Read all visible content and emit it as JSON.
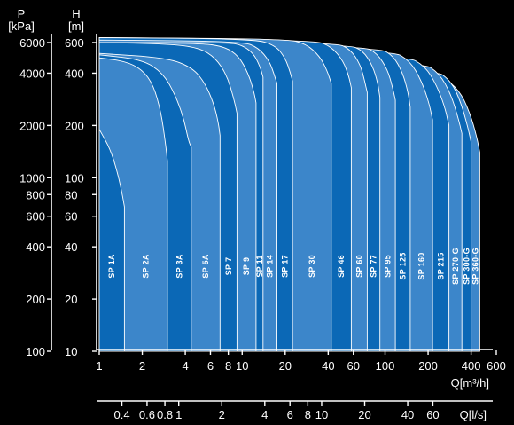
{
  "chart_data": {
    "type": "area",
    "title": "",
    "x_axis": {
      "label": "Q[m³/h]",
      "scale": "log",
      "range": [
        1,
        600
      ],
      "ticks": [
        1,
        2,
        4,
        6,
        8,
        10,
        20,
        40,
        60,
        100,
        200,
        400,
        600
      ],
      "tick_labels": [
        "1",
        "2",
        "4",
        "6",
        "8",
        "10",
        "20",
        "40",
        "60",
        "100",
        "200",
        "400",
        "600"
      ]
    },
    "x2_axis": {
      "label": "Q[l/s]",
      "scale": "log",
      "ticks": [
        0.4,
        0.6,
        0.8,
        1,
        2,
        4,
        6,
        8,
        10,
        20,
        40,
        60
      ],
      "tick_labels": [
        "0.4",
        "0.6",
        "0.8",
        "1",
        "2",
        "4",
        "6",
        "8",
        "10",
        "20",
        "40",
        "60"
      ]
    },
    "y_axis": {
      "label": "H\n[m]",
      "label_lines": [
        "H",
        "[m]"
      ],
      "scale": "log",
      "range": [
        10,
        600
      ],
      "ticks": [
        10,
        20,
        40,
        60,
        80,
        100,
        200,
        400,
        600
      ],
      "tick_labels": [
        "10",
        "20",
        "40",
        "60",
        "80",
        "100",
        "200",
        "400",
        "600"
      ]
    },
    "y2_axis": {
      "label": "P\n[kPa]",
      "label_lines": [
        "P",
        "[kPa]"
      ],
      "scale": "log",
      "ticks": [
        100,
        200,
        400,
        600,
        800,
        1000,
        2000,
        4000,
        6000
      ],
      "tick_labels": [
        "100",
        "200",
        "400",
        "600",
        "800",
        "1000",
        "2000",
        "4000",
        "6000"
      ]
    },
    "grid": false,
    "colors": {
      "dark": "#0b68b6",
      "light": "#3c86ca",
      "edge": "#ffffff",
      "background": "#000000"
    },
    "series": [
      {
        "name": "SP 1A",
        "q_min": 1.0,
        "q_max": 1.5,
        "h_max": 190,
        "shade": "dark",
        "points": [
          [
            1.0,
            190
          ],
          [
            1.2,
            145
          ],
          [
            1.35,
            105
          ],
          [
            1.45,
            80
          ],
          [
            1.5,
            68
          ]
        ]
      },
      {
        "name": "SP 2A",
        "q_min": 1.5,
        "q_max": 3.0,
        "h_max": 490,
        "shade": "light",
        "points": [
          [
            1.0,
            490
          ],
          [
            1.5,
            470
          ],
          [
            2.0,
            420
          ],
          [
            2.4,
            340
          ],
          [
            2.7,
            240
          ],
          [
            2.9,
            160
          ],
          [
            3.0,
            125
          ]
        ]
      },
      {
        "name": "SP 3A",
        "q_min": 3.0,
        "q_max": 4.4,
        "h_max": 510,
        "shade": "dark",
        "points": [
          [
            1.0,
            510
          ],
          [
            2.0,
            480
          ],
          [
            2.8,
            400
          ],
          [
            3.4,
            300
          ],
          [
            3.9,
            220
          ],
          [
            4.2,
            165
          ],
          [
            4.4,
            150
          ]
        ]
      },
      {
        "name": "SP 5A",
        "q_min": 4.4,
        "q_max": 7.0,
        "h_max": 520,
        "shade": "light",
        "points": [
          [
            1.0,
            520
          ],
          [
            3.0,
            490
          ],
          [
            4.5,
            430
          ],
          [
            5.5,
            350
          ],
          [
            6.3,
            270
          ],
          [
            6.8,
            210
          ],
          [
            7.0,
            175
          ]
        ]
      },
      {
        "name": "SP 7",
        "q_min": 7.0,
        "q_max": 9.2,
        "h_max": 600,
        "shade": "dark",
        "points": [
          [
            1.0,
            600
          ],
          [
            3.0,
            590
          ],
          [
            5.0,
            560
          ],
          [
            6.5,
            490
          ],
          [
            7.8,
            390
          ],
          [
            8.7,
            290
          ],
          [
            9.2,
            235
          ]
        ]
      },
      {
        "name": "SP 9",
        "q_min": 9.2,
        "q_max": 12.5,
        "h_max": 600,
        "shade": "light",
        "points": [
          [
            1.0,
            600
          ],
          [
            5.0,
            595
          ],
          [
            7.5,
            570
          ],
          [
            9.5,
            500
          ],
          [
            11.0,
            400
          ],
          [
            12.0,
            320
          ],
          [
            12.5,
            270
          ]
        ]
      },
      {
        "name": "SP 11",
        "q_min": 12.5,
        "q_max": 14.0,
        "h_max": 600,
        "shade": "dark",
        "points": [
          [
            1.0,
            600
          ],
          [
            8.0,
            600
          ],
          [
            10.0,
            580
          ],
          [
            12.0,
            520
          ],
          [
            13.3,
            440
          ],
          [
            14.0,
            380
          ]
        ]
      },
      {
        "name": "SP 14",
        "q_min": 14.0,
        "q_max": 17.5,
        "h_max": 620,
        "shade": "light",
        "points": [
          [
            1.0,
            620
          ],
          [
            10.0,
            610
          ],
          [
            13.0,
            560
          ],
          [
            15.5,
            470
          ],
          [
            16.8,
            390
          ],
          [
            17.5,
            350
          ]
        ]
      },
      {
        "name": "SP 17",
        "q_min": 17.5,
        "q_max": 22.5,
        "h_max": 640,
        "shade": "dark",
        "points": [
          [
            1.0,
            640
          ],
          [
            12.0,
            630
          ],
          [
            17.0,
            580
          ],
          [
            20.0,
            490
          ],
          [
            21.8,
            400
          ],
          [
            22.5,
            360
          ]
        ]
      },
      {
        "name": "SP 30",
        "q_min": 22.5,
        "q_max": 42.0,
        "h_max": 640,
        "shade": "light",
        "points": [
          [
            1.0,
            640
          ],
          [
            20.0,
            630
          ],
          [
            28.0,
            590
          ],
          [
            35.0,
            500
          ],
          [
            39.5,
            410
          ],
          [
            42.0,
            350
          ]
        ]
      },
      {
        "name": "SP 46",
        "q_min": 42.0,
        "q_max": 58.0,
        "h_max": 630,
        "shade": "dark",
        "points": [
          [
            1.0,
            630
          ],
          [
            32.0,
            620
          ],
          [
            42.0,
            570
          ],
          [
            51.0,
            470
          ],
          [
            56.0,
            380
          ],
          [
            58.0,
            330
          ]
        ]
      },
      {
        "name": "SP 60",
        "q_min": 58.0,
        "q_max": 75.0,
        "h_max": 620,
        "shade": "light",
        "points": [
          [
            1.0,
            620
          ],
          [
            45.0,
            600
          ],
          [
            57.0,
            550
          ],
          [
            67.0,
            450
          ],
          [
            72.0,
            360
          ],
          [
            75.0,
            310
          ]
        ]
      },
      {
        "name": "SP 77",
        "q_min": 75.0,
        "q_max": 92.0,
        "h_max": 600,
        "shade": "dark",
        "points": [
          [
            1.0,
            600
          ],
          [
            55.0,
            585
          ],
          [
            70.0,
            540
          ],
          [
            82.0,
            440
          ],
          [
            89.0,
            350
          ],
          [
            92.0,
            290
          ]
        ]
      },
      {
        "name": "SP 95",
        "q_min": 92.0,
        "q_max": 118.0,
        "h_max": 590,
        "shade": "light",
        "points": [
          [
            1.0,
            590
          ],
          [
            70.0,
            575
          ],
          [
            88.0,
            520
          ],
          [
            104.0,
            420
          ],
          [
            113.0,
            330
          ],
          [
            118.0,
            280
          ]
        ]
      },
      {
        "name": "SP 125",
        "q_min": 118.0,
        "q_max": 150.0,
        "h_max": 580,
        "shade": "dark",
        "points": [
          [
            1.0,
            580
          ],
          [
            90.0,
            565
          ],
          [
            115.0,
            500
          ],
          [
            133.0,
            400
          ],
          [
            145.0,
            310
          ],
          [
            150.0,
            255
          ]
        ]
      },
      {
        "name": "SP 160",
        "q_min": 150.0,
        "q_max": 215.0,
        "h_max": 560,
        "shade": "light",
        "points": [
          [
            1.0,
            560
          ],
          [
            110.0,
            545
          ],
          [
            150.0,
            470
          ],
          [
            180.0,
            360
          ],
          [
            203.0,
            270
          ],
          [
            215.0,
            215
          ]
        ]
      },
      {
        "name": "SP 215",
        "q_min": 215.0,
        "q_max": 280.0,
        "h_max": 520,
        "shade": "dark",
        "points": [
          [
            1.0,
            520
          ],
          [
            140.0,
            505
          ],
          [
            190.0,
            440
          ],
          [
            230.0,
            340
          ],
          [
            262.0,
            255
          ],
          [
            280.0,
            200
          ]
        ]
      },
      {
        "name": "SP 270-G",
        "q_min": 280.0,
        "q_max": 345.0,
        "h_max": 480,
        "shade": "light",
        "points": [
          [
            1.0,
            480
          ],
          [
            180.0,
            465
          ],
          [
            240.0,
            400
          ],
          [
            290.0,
            300
          ],
          [
            325.0,
            220
          ],
          [
            345.0,
            180
          ]
        ]
      },
      {
        "name": "SP 300-G",
        "q_min": 345.0,
        "q_max": 400.0,
        "h_max": 440,
        "shade": "dark",
        "points": [
          [
            1.0,
            440
          ],
          [
            220.0,
            425
          ],
          [
            290.0,
            360
          ],
          [
            340.0,
            270
          ],
          [
            380.0,
            195
          ],
          [
            400.0,
            160
          ]
        ]
      },
      {
        "name": "SP 360-G",
        "q_min": 400.0,
        "q_max": 460.0,
        "h_max": 400,
        "shade": "light",
        "points": [
          [
            1.0,
            400
          ],
          [
            250.0,
            385
          ],
          [
            330.0,
            320
          ],
          [
            390.0,
            240
          ],
          [
            440.0,
            170
          ],
          [
            460.0,
            140
          ]
        ]
      }
    ]
  }
}
